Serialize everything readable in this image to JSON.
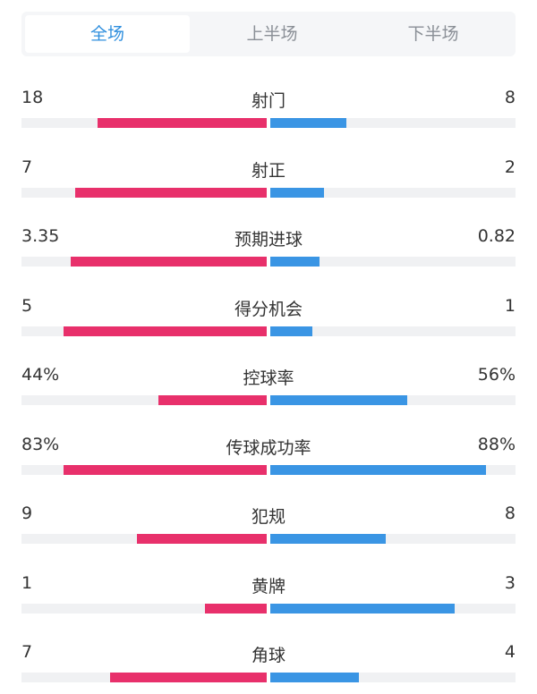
{
  "tabs": [
    {
      "label": "全场",
      "active": true
    },
    {
      "label": "上半场",
      "active": false
    },
    {
      "label": "下半场",
      "active": false
    }
  ],
  "colors": {
    "home": "#e8306b",
    "away": "#3a95e4",
    "active_tab": "#2f8fde"
  },
  "stats": [
    {
      "label": "射门",
      "home": "18",
      "away": "8",
      "home_bar": 0.69,
      "away_bar": 0.31
    },
    {
      "label": "射正",
      "home": "7",
      "away": "2",
      "home_bar": 0.78,
      "away_bar": 0.22
    },
    {
      "label": "预期进球",
      "home": "3.35",
      "away": "0.82",
      "home_bar": 0.8,
      "away_bar": 0.2
    },
    {
      "label": "得分机会",
      "home": "5",
      "away": "1",
      "home_bar": 0.83,
      "away_bar": 0.17
    },
    {
      "label": "控球率",
      "home": "44%",
      "away": "56%",
      "home_bar": 0.44,
      "away_bar": 0.56
    },
    {
      "label": "传球成功率",
      "home": "83%",
      "away": "88%",
      "home_bar": 0.83,
      "away_bar": 0.88
    },
    {
      "label": "犯规",
      "home": "9",
      "away": "8",
      "home_bar": 0.53,
      "away_bar": 0.47
    },
    {
      "label": "黄牌",
      "home": "1",
      "away": "3",
      "home_bar": 0.25,
      "away_bar": 0.75
    },
    {
      "label": "角球",
      "home": "7",
      "away": "4",
      "home_bar": 0.64,
      "away_bar": 0.36
    }
  ]
}
